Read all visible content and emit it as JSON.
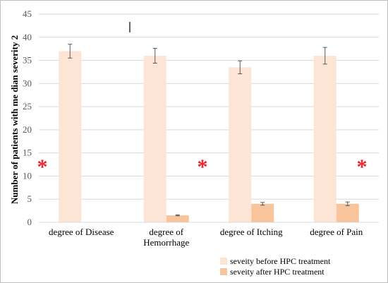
{
  "chart_data": {
    "type": "bar",
    "title": "",
    "xlabel": "",
    "ylabel": "Number of patients with me dian severity 2",
    "ylim": [
      0,
      45
    ],
    "yticks": [
      0,
      5,
      10,
      15,
      20,
      25,
      30,
      35,
      40,
      45
    ],
    "grid": true,
    "legend_position": "bottom-right",
    "categories": [
      [
        "degree of Disease"
      ],
      [
        "degree of",
        "Hemorrhage"
      ],
      [
        "degree of Itching"
      ],
      [
        "degree of Pain"
      ]
    ],
    "series": [
      {
        "name": "seveity before HPC treatment",
        "color": "#fde5d6",
        "values": [
          37,
          36,
          33.5,
          36
        ],
        "errors": [
          1.5,
          1.6,
          1.4,
          1.8
        ]
      },
      {
        "name": "seveity after HPC treatment",
        "color": "#f8c49b",
        "values": [
          0,
          1.5,
          4,
          4
        ],
        "errors": [
          0,
          0.1,
          0.3,
          0.4
        ]
      }
    ],
    "annotations": [
      "*",
      "*",
      "*"
    ],
    "annotation_color": "#e8262e"
  }
}
